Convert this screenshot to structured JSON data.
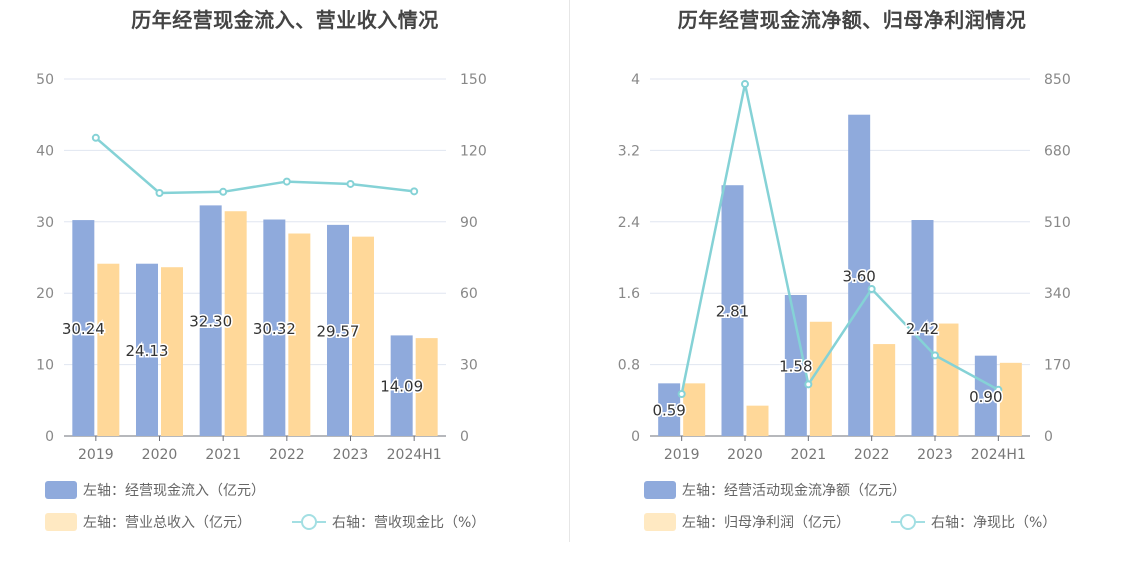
{
  "chart_data": [
    {
      "type": "bar",
      "title": "历年经营现金流入、营业收入情况",
      "categories": [
        "2019",
        "2020",
        "2021",
        "2022",
        "2023",
        "2024H1"
      ],
      "left_axis": {
        "ticks": [
          "0",
          "10",
          "20",
          "30",
          "40",
          "50"
        ],
        "ylim": [
          0,
          50
        ]
      },
      "right_axis": {
        "ticks": [
          "0",
          "30",
          "60",
          "90",
          "120",
          "150"
        ],
        "ylim": [
          0,
          150
        ]
      },
      "series": [
        {
          "name": "左轴：经营现金流入（亿元）",
          "axis": "left",
          "kind": "bar",
          "color": "#8faadc",
          "values": [
            30.24,
            24.13,
            32.3,
            30.32,
            29.57,
            14.09
          ],
          "labels": [
            "30.24",
            "24.13",
            "32.30",
            "30.32",
            "29.57",
            "14.09"
          ]
        },
        {
          "name": "左轴：营业总收入（亿元）",
          "axis": "left",
          "kind": "bar",
          "color": "#ffd899",
          "values": [
            24.13,
            23.64,
            31.48,
            28.36,
            27.92,
            13.71
          ]
        },
        {
          "name": "右轴：营收现金比（%）",
          "axis": "right",
          "kind": "line",
          "color": "#85d2d6",
          "values": [
            125.3,
            102.1,
            102.6,
            106.9,
            105.9,
            102.8
          ]
        }
      ]
    },
    {
      "type": "bar",
      "title": "历年经营现金流净额、归母净利润情况",
      "categories": [
        "2019",
        "2020",
        "2021",
        "2022",
        "2023",
        "2024H1"
      ],
      "left_axis": {
        "ticks": [
          "0",
          "0.8",
          "1.6",
          "2.4",
          "3.2",
          "4"
        ],
        "ylim": [
          0,
          4
        ]
      },
      "right_axis": {
        "ticks": [
          "0",
          "170",
          "340",
          "510",
          "680",
          "850"
        ],
        "ylim": [
          0,
          850
        ]
      },
      "series": [
        {
          "name": "左轴：经营活动现金流净额（亿元）",
          "axis": "left",
          "kind": "bar",
          "color": "#8faadc",
          "values": [
            0.59,
            2.81,
            1.58,
            3.6,
            2.42,
            0.9
          ],
          "labels": [
            "0.59",
            "2.81",
            "1.58",
            "3.60",
            "2.42",
            "0.90"
          ]
        },
        {
          "name": "左轴：归母净利润（亿元）",
          "axis": "left",
          "kind": "bar",
          "color": "#ffd899",
          "values": [
            0.59,
            0.34,
            1.28,
            1.03,
            1.26,
            0.82
          ]
        },
        {
          "name": "右轴：净现比（%）",
          "axis": "right",
          "kind": "line",
          "color": "#85d2d6",
          "values": [
            100,
            838,
            123,
            350,
            192,
            110
          ]
        }
      ]
    }
  ]
}
